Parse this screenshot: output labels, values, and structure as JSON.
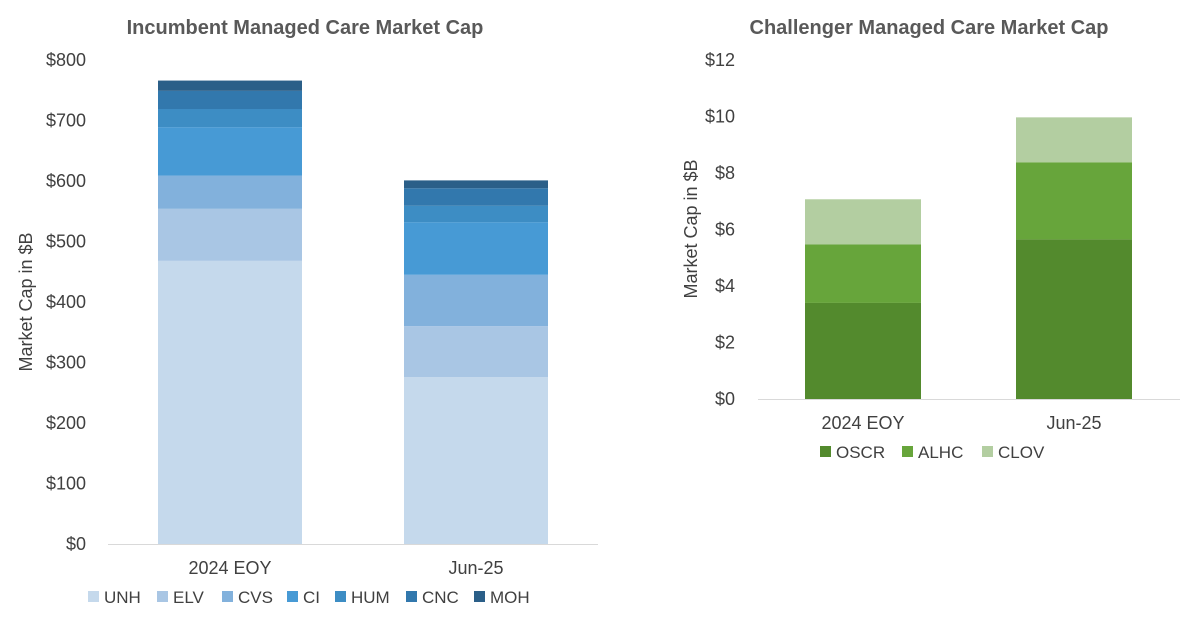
{
  "chart_data": [
    {
      "type": "bar",
      "stacked": true,
      "title": "Incumbent Managed Care Market Cap",
      "ylabel": "Market Cap in $B",
      "xlabel": "",
      "categories": [
        "2024 EOY",
        "Jun-25"
      ],
      "ylim": [
        0,
        800
      ],
      "yticks": [
        0,
        100,
        200,
        300,
        400,
        500,
        600,
        700,
        800
      ],
      "ytick_labels": [
        "$0",
        "$100",
        "$200",
        "$300",
        "$400",
        "$500",
        "$600",
        "$700",
        "$800"
      ],
      "grid": false,
      "legend_position": "bottom",
      "series": [
        {
          "name": "UNH",
          "color": "#c5d9ec",
          "values": [
            468,
            276
          ]
        },
        {
          "name": "ELV",
          "color": "#a9c6e4",
          "values": [
            86,
            84
          ]
        },
        {
          "name": "CVS",
          "color": "#82b1dc",
          "values": [
            55,
            85
          ]
        },
        {
          "name": "CI",
          "color": "#479ad5",
          "values": [
            80,
            87
          ]
        },
        {
          "name": "HUM",
          "color": "#3d8dc4",
          "values": [
            30,
            27
          ]
        },
        {
          "name": "CNC",
          "color": "#3278ad",
          "values": [
            30,
            29
          ]
        },
        {
          "name": "MOH",
          "color": "#2b5f88",
          "values": [
            17,
            13
          ]
        }
      ]
    },
    {
      "type": "bar",
      "stacked": true,
      "title": "Challenger Managed Care Market Cap",
      "ylabel": "Market Cap in $B",
      "xlabel": "",
      "categories": [
        "2024 EOY",
        "Jun-25"
      ],
      "ylim": [
        0,
        12
      ],
      "yticks": [
        0,
        2,
        4,
        6,
        8,
        10,
        12
      ],
      "ytick_labels": [
        "$0",
        "$2",
        "$4",
        "$6",
        "$8",
        "$10",
        "$12"
      ],
      "grid": false,
      "legend_position": "bottom",
      "series": [
        {
          "name": "OSCR",
          "color": "#538a2d",
          "values": [
            3.4,
            5.65
          ]
        },
        {
          "name": "ALHC",
          "color": "#67a53b",
          "values": [
            2.07,
            2.73
          ]
        },
        {
          "name": "CLOV",
          "color": "#b3ceа1",
          "values": [
            1.6,
            1.59
          ]
        }
      ]
    }
  ]
}
